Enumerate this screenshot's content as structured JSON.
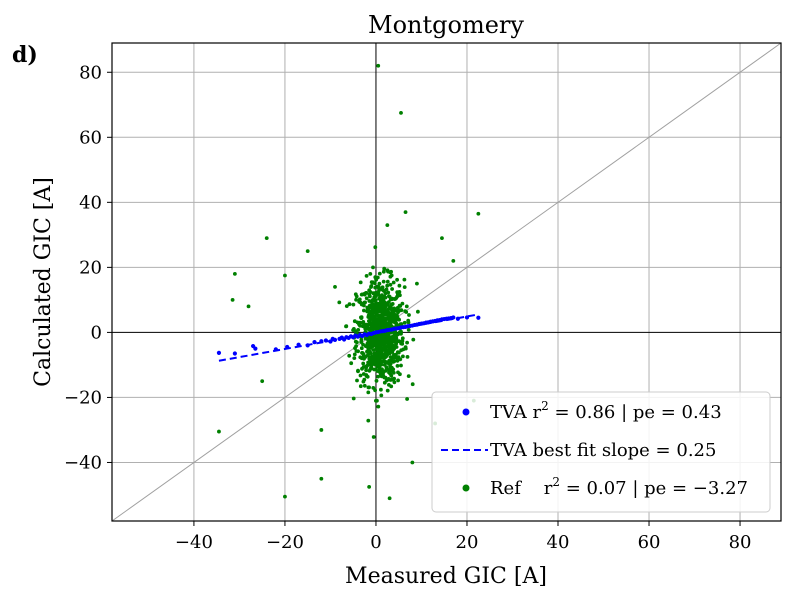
{
  "panel_label": "d)",
  "chart_data": {
    "type": "scatter",
    "title": "Montgomery",
    "xlabel": "Measured GIC [A]",
    "ylabel": "Calculated GIC [A]",
    "xlim": [
      -58,
      89
    ],
    "ylim": [
      -58,
      89
    ],
    "xticks": [
      -40,
      -20,
      0,
      20,
      40,
      60,
      80
    ],
    "yticks": [
      -40,
      -20,
      0,
      20,
      40,
      60,
      80
    ],
    "xtick_labels": [
      "−40",
      "−20",
      "0",
      "20",
      "40",
      "60",
      "80"
    ],
    "ytick_labels": [
      "−40",
      "−20",
      "0",
      "20",
      "40",
      "60",
      "80"
    ],
    "grid": true,
    "legend_position": "lower-right",
    "reference_line": {
      "name": "1:1 line",
      "slope": 1,
      "intercept": 0,
      "color": "#a0a0a0"
    },
    "series": [
      {
        "name": "TVA",
        "kind": "scatter",
        "color": "#0000ff",
        "legend": {
          "prefix": "TVA r",
          "sup": "2",
          "suffix": " = 0.86 | pe = 0.43"
        },
        "points": [
          [
            -34.5,
            -6.3
          ],
          [
            -31,
            -6.5
          ],
          [
            -27,
            -4.2
          ],
          [
            -26.5,
            -5
          ],
          [
            -22,
            -5.2
          ],
          [
            -19.5,
            -4.5
          ],
          [
            -17,
            -3.8
          ],
          [
            -15,
            -4
          ],
          [
            -13.5,
            -3
          ],
          [
            -12,
            -2.7
          ],
          [
            -11,
            -2.5
          ],
          [
            -10,
            -2.8
          ],
          [
            -9.5,
            -2
          ],
          [
            -9,
            -2.3
          ],
          [
            -8,
            -2
          ],
          [
            -7.5,
            -1.6
          ],
          [
            -7,
            -2.2
          ],
          [
            -6.5,
            -1.5
          ],
          [
            -6,
            -1.7
          ],
          [
            -5.5,
            -1.2
          ],
          [
            -5,
            -1.5
          ],
          [
            -4.5,
            -1
          ],
          [
            -4,
            -1.3
          ],
          [
            -3.5,
            -0.8
          ],
          [
            -3,
            -1.1
          ],
          [
            -2.5,
            -0.6
          ],
          [
            -2,
            -0.8
          ],
          [
            -1.5,
            -0.4
          ],
          [
            -1,
            -0.5
          ],
          [
            -0.5,
            -0.2
          ],
          [
            0,
            0
          ],
          [
            0.5,
            0.1
          ],
          [
            1,
            0.3
          ],
          [
            1.5,
            0.4
          ],
          [
            2,
            0.5
          ],
          [
            2.5,
            0.7
          ],
          [
            3,
            0.8
          ],
          [
            3.5,
            0.9
          ],
          [
            4,
            1.1
          ],
          [
            4.5,
            1.2
          ],
          [
            5,
            1.3
          ],
          [
            5.5,
            1.5
          ],
          [
            6,
            1.6
          ],
          [
            6.5,
            1.7
          ],
          [
            7,
            1.9
          ],
          [
            7.5,
            2
          ],
          [
            8,
            2.1
          ],
          [
            8.5,
            2.3
          ],
          [
            9,
            2.4
          ],
          [
            9.5,
            2.6
          ],
          [
            10,
            2.7
          ],
          [
            10.5,
            2.8
          ],
          [
            11,
            3
          ],
          [
            11.5,
            3.1
          ],
          [
            12,
            3.3
          ],
          [
            12.5,
            3.4
          ],
          [
            13,
            3.5
          ],
          [
            13.5,
            3.7
          ],
          [
            14,
            3.8
          ],
          [
            14.5,
            4
          ],
          [
            15,
            4.1
          ],
          [
            15.5,
            4.2
          ],
          [
            16,
            4.3
          ],
          [
            16.5,
            4.4
          ],
          [
            17,
            4.6
          ],
          [
            18,
            4.2
          ],
          [
            20,
            4.6
          ],
          [
            22.5,
            4.5
          ]
        ]
      },
      {
        "name": "TVA best fit",
        "kind": "line",
        "dashed": true,
        "color": "#0000ff",
        "legend": {
          "prefix": "TVA best fit slope = 0.25",
          "sup": "",
          "suffix": ""
        },
        "slope": 0.25,
        "intercept": -0.1,
        "x_range": [
          -34.5,
          22.5
        ]
      },
      {
        "name": "Ref",
        "kind": "scatter",
        "color": "#008000",
        "legend": {
          "prefix": "Ref    r",
          "sup": "2",
          "suffix": " = 0.07 | pe = −3.27"
        },
        "cluster": {
          "count": 900,
          "x_center": 1,
          "x_spread": 2.6,
          "y_center": 0,
          "y_spread": 8
        },
        "outliers": [
          [
            0.5,
            82
          ],
          [
            5.5,
            67.5
          ],
          [
            22.5,
            36.5
          ],
          [
            -24,
            29
          ],
          [
            -15,
            25
          ],
          [
            -20,
            17.5
          ],
          [
            -31,
            18
          ],
          [
            -31.5,
            10
          ],
          [
            -34.5,
            -30.5
          ],
          [
            -20,
            -50.5
          ],
          [
            -12,
            -45
          ],
          [
            3,
            -51
          ],
          [
            -1.5,
            -47.5
          ],
          [
            8,
            -40
          ],
          [
            13,
            -28
          ],
          [
            21.5,
            -21
          ],
          [
            17,
            22
          ],
          [
            14.5,
            29
          ],
          [
            6.5,
            37
          ],
          [
            2.5,
            33
          ],
          [
            9,
            15
          ],
          [
            -9,
            14
          ],
          [
            -12,
            -30
          ],
          [
            -25,
            -15
          ],
          [
            -28,
            8
          ]
        ]
      }
    ]
  }
}
